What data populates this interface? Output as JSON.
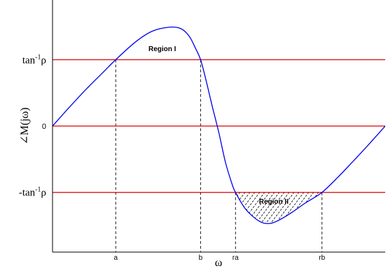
{
  "chart_data": {
    "type": "line",
    "title": "",
    "xlabel": "ω",
    "ylabel": "∠M(jω)",
    "xlim": [
      0,
      1
    ],
    "ylim": [
      -1.9,
      1.9
    ],
    "grid": false,
    "legend": "none",
    "colors": {
      "curve": "#0000ee",
      "reference_lines": "#dd0000",
      "axes": "#000000",
      "guides": "#000000"
    },
    "y_ticks": [
      {
        "value": 1.0,
        "label_main": "tan",
        "label_sup": "-1",
        "label_tail": "ρ"
      },
      {
        "value": 0.0,
        "label_main": "0",
        "label_sup": "",
        "label_tail": ""
      },
      {
        "value": -1.0,
        "label_main": "-tan",
        "label_sup": "-1",
        "label_tail": "ρ"
      }
    ],
    "x_ticks": [
      {
        "value": 0.19,
        "label": "a"
      },
      {
        "value": 0.445,
        "label": "b"
      },
      {
        "value": 0.55,
        "label": "ra"
      },
      {
        "value": 0.81,
        "label": "rb"
      }
    ],
    "reference_lines": [
      1.0,
      0.0,
      -1.0
    ],
    "series": [
      {
        "x": [
          0.0,
          0.05,
          0.1,
          0.15,
          0.19,
          0.25,
          0.3,
          0.35,
          0.385,
          0.41,
          0.43,
          0.445,
          0.46,
          0.48,
          0.5,
          0.52,
          0.54,
          0.55,
          0.58,
          0.62,
          0.65,
          0.68,
          0.72,
          0.76,
          0.81,
          0.86,
          0.9,
          0.95,
          1.0
        ],
        "values": [
          0.0,
          0.28,
          0.55,
          0.8,
          1.0,
          1.27,
          1.43,
          1.49,
          1.47,
          1.36,
          1.17,
          1.0,
          0.72,
          0.3,
          -0.1,
          -0.55,
          -0.88,
          -1.0,
          -1.25,
          -1.43,
          -1.47,
          -1.42,
          -1.3,
          -1.16,
          -1.0,
          -0.76,
          -0.55,
          -0.28,
          0.0
        ]
      }
    ],
    "annotations": [
      {
        "text": "Region I",
        "x": 0.33,
        "y": 1.13
      },
      {
        "text": "Region II",
        "x": 0.665,
        "y": -1.17
      }
    ],
    "shaded_region": {
      "label": "Region II",
      "x_from": 0.55,
      "x_to": 0.81,
      "y_top": -1.0,
      "pattern": "diagonal-hatch"
    }
  }
}
